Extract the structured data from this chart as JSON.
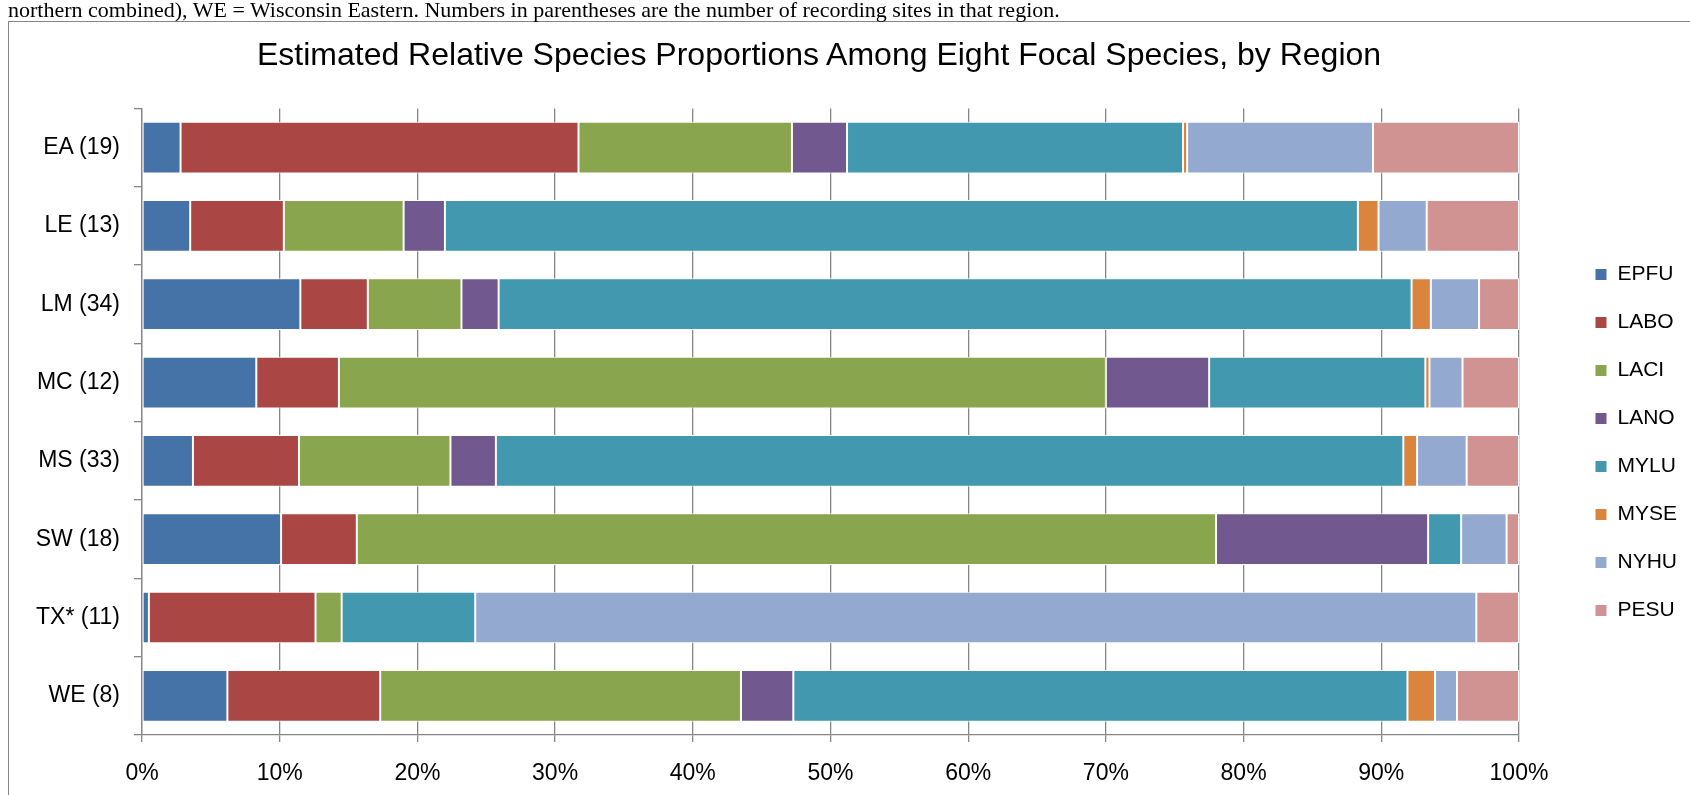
{
  "chart_data": {
    "type": "bar",
    "orientation": "horizontal",
    "stacked": true,
    "title": "Estimated Relative Species Proportions Among Eight Focal Species, by Region",
    "annotations": [
      "northern combined), WE = Wisconsin Eastern.  Numbers in parentheses are the number of recording sites in that region."
    ],
    "categories": [
      "EA (19)",
      "LE (13)",
      "LM (34)",
      "MC (12)",
      "MS (33)",
      "SW (18)",
      "TX* (11)",
      "WE (8)"
    ],
    "series": [
      {
        "name": "EPFU",
        "color": "#4572a7",
        "values": [
          2.8,
          3.5,
          11.5,
          8.3,
          3.7,
          10.1,
          0.5,
          6.2
        ]
      },
      {
        "name": "LABO",
        "color": "#aa4643",
        "values": [
          28.9,
          6.8,
          4.9,
          6.0,
          7.7,
          5.5,
          12.1,
          11.1
        ]
      },
      {
        "name": "LACI",
        "color": "#89a54e",
        "values": [
          15.5,
          8.7,
          6.8,
          55.7,
          11.0,
          62.4,
          1.9,
          26.2
        ]
      },
      {
        "name": "LANO",
        "color": "#71588f",
        "values": [
          4.0,
          3.0,
          2.7,
          7.5,
          3.3,
          15.4,
          0,
          3.8
        ]
      },
      {
        "name": "MYLU",
        "color": "#4198af",
        "values": [
          24.4,
          66.3,
          66.3,
          15.7,
          65.9,
          2.4,
          9.7,
          44.6
        ]
      },
      {
        "name": "MYSE",
        "color": "#db843d",
        "values": [
          0.3,
          1.5,
          1.4,
          0.3,
          1.0,
          0,
          0,
          2.0
        ]
      },
      {
        "name": "NYHU",
        "color": "#93a9cf",
        "values": [
          13.5,
          3.5,
          3.5,
          2.4,
          3.6,
          3.3,
          72.7,
          1.6
        ]
      },
      {
        "name": "PESU",
        "color": "#d19392",
        "values": [
          10.6,
          6.7,
          2.9,
          4.1,
          3.8,
          0.9,
          3.1,
          4.5
        ]
      }
    ],
    "xlim": [
      0,
      100
    ],
    "xticks": [
      {
        "value": 0,
        "label": "0%"
      },
      {
        "value": 10,
        "label": "10%"
      },
      {
        "value": 20,
        "label": "20%"
      },
      {
        "value": 30,
        "label": "30%"
      },
      {
        "value": 40,
        "label": "40%"
      },
      {
        "value": 50,
        "label": "50%"
      },
      {
        "value": 60,
        "label": "60%"
      },
      {
        "value": 70,
        "label": "70%"
      },
      {
        "value": 80,
        "label": "80%"
      },
      {
        "value": 90,
        "label": "90%"
      },
      {
        "value": 100,
        "label": "100%"
      }
    ],
    "grid": "x",
    "legend": "right"
  }
}
